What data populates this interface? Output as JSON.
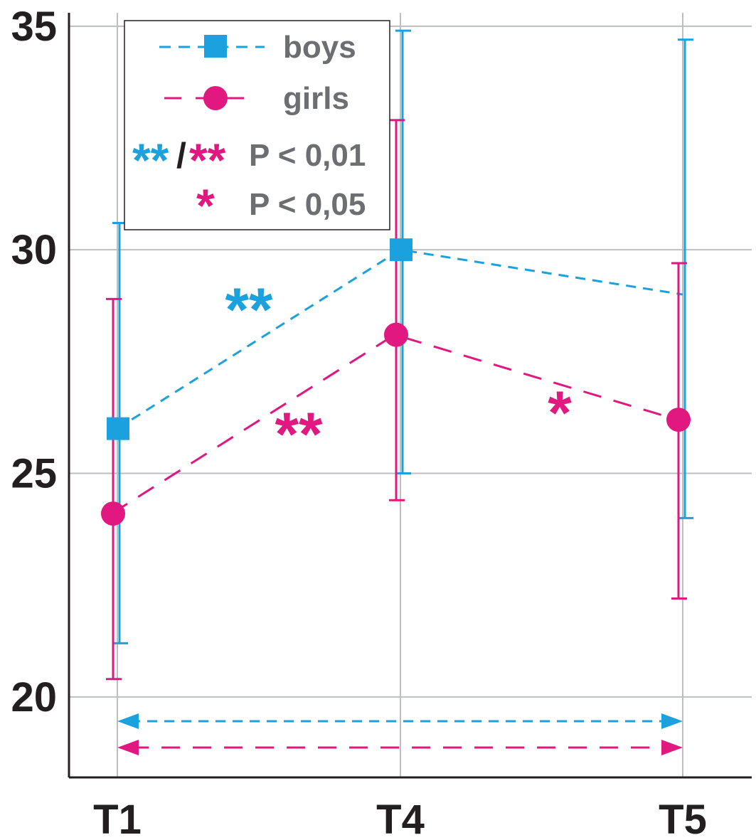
{
  "chart_data": {
    "type": "line",
    "categories": [
      "T1",
      "T4",
      "T5"
    ],
    "ylim": [
      18.2,
      35.3
    ],
    "yticks": [
      20,
      25,
      30,
      35
    ],
    "ytick_labels": [
      "20",
      "25",
      "30",
      "35"
    ],
    "grid": true,
    "legend_position": "top-left",
    "series": [
      {
        "name": "boys",
        "color": "#1ba1dd",
        "marker": "square",
        "values": [
          26.0,
          30.0,
          29.0
        ],
        "err_low": [
          21.2,
          25.0,
          24.0
        ],
        "err_high": [
          30.6,
          34.9,
          34.7
        ]
      },
      {
        "name": "girls",
        "color": "#e0187f",
        "marker": "circle",
        "values": [
          24.1,
          28.1,
          26.2
        ],
        "err_low": [
          20.4,
          24.4,
          22.2
        ],
        "err_high": [
          28.9,
          32.9,
          29.7
        ]
      }
    ],
    "legend": {
      "boys_label": "boys",
      "girls_label": "girls",
      "sig_double_stars_blue": "**",
      "sig_slash": "/",
      "sig_double_stars_pink": "**",
      "sig_double_label": "P < 0,01",
      "sig_single_star": "*",
      "sig_single_label": "P < 0,05"
    },
    "annotations": {
      "boys_t1_t4": "**",
      "girls_t1_t4": "**",
      "girls_t4_t5": "*"
    },
    "comparison_arrows": [
      {
        "from": "T1",
        "to": "T5",
        "series": "boys"
      },
      {
        "from": "T1",
        "to": "T5",
        "series": "girls"
      }
    ]
  }
}
